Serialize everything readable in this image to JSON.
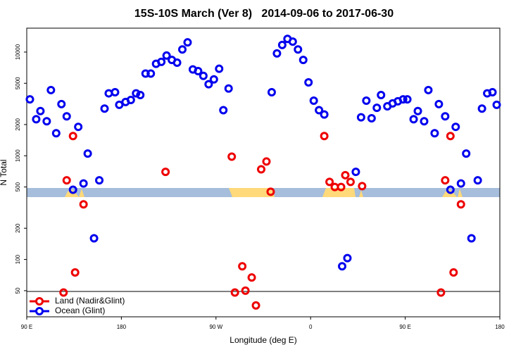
{
  "chart_data": {
    "type": "scatter",
    "title": "15S-10S March (Ver 8)   2014-09-06 to 2017-06-30",
    "xlabel": "Longitude (deg E)",
    "ylabel": "N Total",
    "xlim": [
      90,
      540
    ],
    "xticks": [
      {
        "value": 90,
        "label": "90 E"
      },
      {
        "value": 180,
        "label": "180"
      },
      {
        "value": 270,
        "label": "90 W"
      },
      {
        "value": 360,
        "label": "0"
      },
      {
        "value": 450,
        "label": "90 E"
      },
      {
        "value": 540,
        "label": "180"
      }
    ],
    "ylim": [
      28,
      17000
    ],
    "yticks": [
      50,
      100,
      200,
      500,
      1000,
      2000,
      5000,
      10000
    ],
    "log_y": true,
    "legend": "bottom-left",
    "series": [
      {
        "name": "Land (Nadir&Glint)",
        "color": "#ee0000",
        "x": [
          125,
          128,
          134,
          136,
          144,
          222,
          285,
          288,
          295,
          298,
          304,
          308,
          313,
          318,
          322,
          373,
          378,
          383,
          389,
          393,
          398,
          409,
          484,
          488,
          493,
          496,
          503
        ],
        "values": [
          48,
          580,
          1550,
          75,
          340,
          700,
          980,
          48,
          86,
          50,
          67,
          36,
          740,
          880,
          450,
          1550,
          560,
          500,
          500,
          650,
          560,
          510,
          48,
          580,
          1550,
          75,
          340
        ]
      },
      {
        "name": "Ocean (Glint)",
        "color": "#0000ee",
        "x": [
          93,
          99,
          103,
          109,
          113,
          118,
          123,
          128,
          134,
          139,
          144,
          148,
          154,
          159,
          164,
          168,
          174,
          178,
          184,
          189,
          194,
          198,
          203,
          208,
          213,
          218,
          223,
          228,
          233,
          238,
          243,
          248,
          253,
          258,
          263,
          268,
          273,
          277,
          282,
          323,
          328,
          333,
          338,
          343,
          348,
          353,
          358,
          363,
          368,
          373,
          390,
          395,
          403,
          408,
          413,
          418,
          423,
          427,
          433,
          438,
          443,
          448,
          452,
          458,
          462,
          468,
          472,
          478,
          482,
          488,
          493,
          498,
          503,
          508,
          513,
          519,
          523,
          528,
          533,
          537
        ],
        "values": [
          3500,
          2250,
          2700,
          2150,
          4300,
          1650,
          3150,
          2400,
          470,
          1900,
          540,
          1050,
          160,
          580,
          2850,
          4000,
          4100,
          3100,
          3300,
          3450,
          4000,
          3850,
          6200,
          6200,
          7700,
          8050,
          9250,
          8400,
          7900,
          10600,
          12400,
          6800,
          6550,
          5900,
          4900,
          5450,
          6900,
          2750,
          4450,
          4100,
          9700,
          11700,
          13400,
          12600,
          10600,
          8400,
          5100,
          3400,
          2750,
          2500,
          86,
          103,
          700,
          2350,
          3400,
          2300,
          2900,
          3850,
          3000,
          3200,
          3350,
          3500,
          3500,
          2250,
          2700,
          2150,
          4300,
          1650,
          3150,
          2400,
          470,
          1900,
          540,
          1050,
          160,
          580,
          2850,
          4000,
          4100,
          3100
        ]
      }
    ]
  }
}
